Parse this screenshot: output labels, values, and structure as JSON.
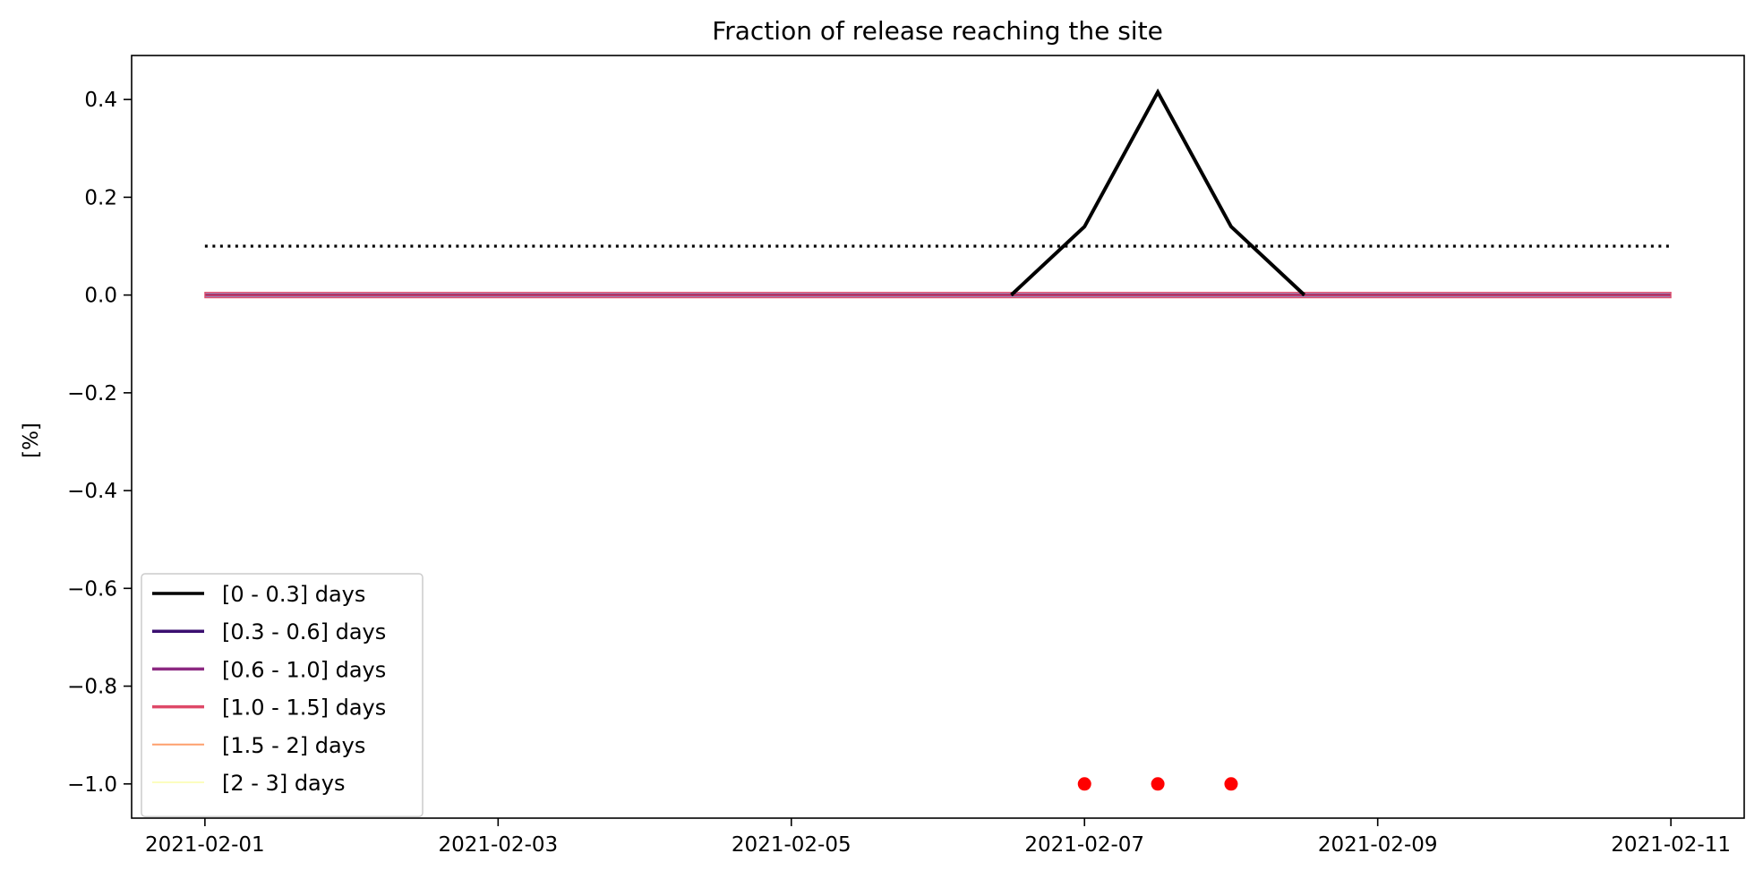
{
  "chart_data": {
    "type": "line",
    "title": "Fraction of release reaching the site",
    "xlabel": "",
    "ylabel": "[%]",
    "x_tick_labels": [
      "2021-02-01",
      "2021-02-03",
      "2021-02-05",
      "2021-02-07",
      "2021-02-09",
      "2021-02-11"
    ],
    "x_tick_values": [
      0,
      2,
      4,
      6,
      8,
      10
    ],
    "y_ticks": [
      -1.0,
      -0.8,
      -0.6,
      -0.4,
      -0.2,
      0.0,
      0.2,
      0.4
    ],
    "y_tick_labels": [
      "−1.0",
      "−0.8",
      "−0.6",
      "−0.4",
      "−0.2",
      "0.0",
      "0.2",
      "0.4"
    ],
    "xlim": [
      "2021-01-31T12:00",
      "2021-02-11T12:00"
    ],
    "ylim": [
      -1.07,
      0.49
    ],
    "grid": false,
    "legend_placement": "lower-left",
    "threshold_line": {
      "y": 0.1,
      "x_start": "2021-02-01",
      "x_end": "2021-02-11",
      "style": "dotted",
      "color": "#000000"
    },
    "series": [
      {
        "name": "[0 - 0.3] days",
        "color": "#000000",
        "x": [
          "2021-02-01",
          "2021-02-06 12:00",
          "2021-02-07 00:00",
          "2021-02-07 12:00",
          "2021-02-08 00:00",
          "2021-02-08 12:00",
          "2021-02-11"
        ],
        "y": [
          0.0,
          0.0,
          0.14,
          0.415,
          0.14,
          0.0,
          0.0
        ]
      },
      {
        "name": "[0.3 - 0.6] days",
        "color": "#3b0f70",
        "x": [
          "2021-02-01",
          "2021-02-11"
        ],
        "y": [
          0.0,
          0.0
        ]
      },
      {
        "name": "[0.6 - 1.0] days",
        "color": "#8c2981",
        "x": [
          "2021-02-01",
          "2021-02-11"
        ],
        "y": [
          0.0,
          0.0
        ]
      },
      {
        "name": "[1.0 - 1.5] days",
        "color": "#de4968",
        "x": [
          "2021-02-01",
          "2021-02-11"
        ],
        "y": [
          0.0,
          0.0
        ]
      },
      {
        "name": "[1.5 - 2] days",
        "color": "#fe9f6d",
        "x": [
          "2021-02-01",
          "2021-02-11"
        ],
        "y": [
          0.0,
          0.0
        ]
      },
      {
        "name": "[2 - 3] days",
        "color": "#fcfdbf",
        "x": [
          "2021-02-01",
          "2021-02-11"
        ],
        "y": [
          0.0,
          0.0
        ]
      }
    ],
    "markers": {
      "color": "#ff0000",
      "x": [
        "2021-02-07 00:00",
        "2021-02-07 12:00",
        "2021-02-08 00:00"
      ],
      "y": [
        -1.0,
        -1.0,
        -1.0
      ]
    }
  }
}
